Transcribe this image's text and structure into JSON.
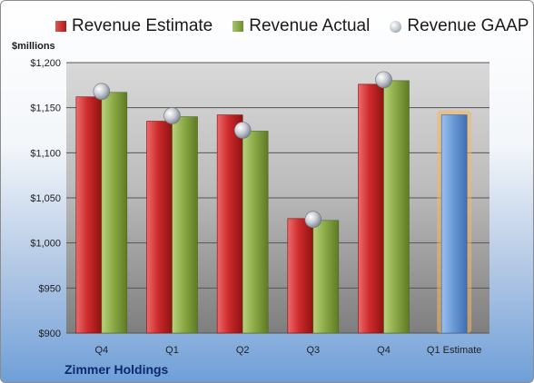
{
  "legend": {
    "estimate": "Revenue Estimate",
    "actual": "Revenue Actual",
    "gaap": "Revenue GAAP"
  },
  "unit_label": "$millions",
  "company": "Zimmer Holdings",
  "colors": {
    "estimate": "#c0272d",
    "actual": "#86a843",
    "gaap": "#c3c7cd",
    "forecast": "#6b9bd6",
    "forecast_glow": "#f3b664"
  },
  "chart_data": {
    "type": "bar",
    "categories": [
      "Q4",
      "Q1",
      "Q2",
      "Q3",
      "Q4",
      "Q1 Estimate"
    ],
    "ylim": [
      900,
      1200
    ],
    "yticks": [
      900,
      950,
      1000,
      1050,
      1100,
      1150,
      1200
    ],
    "ytick_labels": [
      "$900",
      "$950",
      "$1,000",
      "$1,050",
      "$1,100",
      "$1,150",
      "$1,200"
    ],
    "grid": true,
    "legend_position": "top",
    "series": [
      {
        "name": "Revenue Estimate",
        "values": [
          1162,
          1135,
          1142,
          1027,
          1176,
          null
        ]
      },
      {
        "name": "Revenue Actual",
        "values": [
          1167,
          1140,
          1124,
          1025,
          1180,
          null
        ]
      },
      {
        "name": "Revenue GAAP",
        "values": [
          1168,
          1141,
          1125,
          1026,
          1181,
          null
        ]
      }
    ],
    "forecast": {
      "category": "Q1 Estimate",
      "value": 1142
    }
  }
}
